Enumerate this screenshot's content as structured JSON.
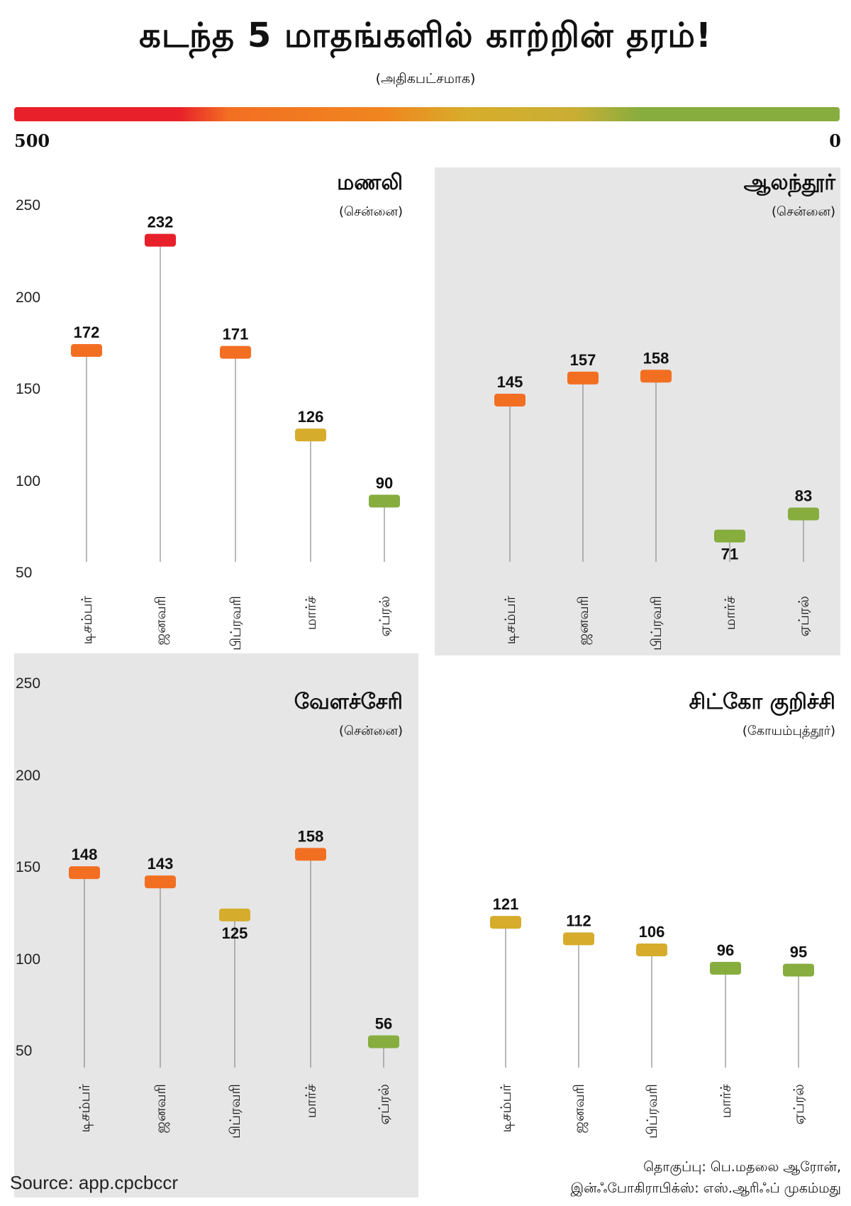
{
  "title": "கடந்த 5 மாதங்களில் காற்றின் தரம்!",
  "subtitle": "(அதிகபட்சமாக)",
  "scale": {
    "max_label": "500",
    "min_label": "0"
  },
  "colors": {
    "red": "#e8202a",
    "orange": "#f26f22",
    "yellow": "#d6ac2c",
    "green": "#86ad3e",
    "panel_gray": "#e6e6e7"
  },
  "yticks": [
    "250",
    "200",
    "150",
    "100",
    "50"
  ],
  "chart_data": [
    {
      "type": "dot",
      "title": "மணலி",
      "subtitle": "(சென்னை)",
      "categories": [
        "டிசம்பர்",
        "ஜனவரி",
        "பிப்ரவரி",
        "மார்ச்",
        "ஏப்ரல்"
      ],
      "values": [
        172,
        232,
        171,
        126,
        90
      ],
      "colors": [
        "orange",
        "red",
        "orange",
        "yellow",
        "green"
      ],
      "ylim": [
        50,
        250
      ]
    },
    {
      "type": "dot",
      "title": "ஆலந்தூர்",
      "subtitle": "(சென்னை)",
      "categories": [
        "டிசம்பர்",
        "ஜனவரி",
        "பிப்ரவரி",
        "மார்ச்",
        "ஏப்ரல்"
      ],
      "values": [
        145,
        157,
        158,
        71,
        83
      ],
      "colors": [
        "orange",
        "orange",
        "orange",
        "green",
        "green"
      ],
      "ylim": [
        50,
        250
      ]
    },
    {
      "type": "dot",
      "title": "வேளச்சேரி",
      "subtitle": "(சென்னை)",
      "categories": [
        "டிசம்பர்",
        "ஜனவரி",
        "பிப்ரவரி",
        "மார்ச்",
        "ஏப்ரல்"
      ],
      "values": [
        148,
        143,
        125,
        158,
        56
      ],
      "colors": [
        "orange",
        "orange",
        "yellow",
        "orange",
        "green"
      ],
      "ylim": [
        50,
        250
      ]
    },
    {
      "type": "dot",
      "title": "சிட்கோ குறிச்சி",
      "subtitle": "(கோயம்புத்தூர்)",
      "categories": [
        "டிசம்பர்",
        "ஜனவரி",
        "பிப்ரவரி",
        "மார்ச்",
        "ஏப்ரல்"
      ],
      "values": [
        121,
        112,
        106,
        96,
        95
      ],
      "colors": [
        "yellow",
        "yellow",
        "yellow",
        "green",
        "green"
      ],
      "ylim": [
        50,
        250
      ]
    }
  ],
  "source": "Source: app.cpcbccr",
  "credit": {
    "line1": "தொகுப்பு: பெ.மதலை ஆரோன்,",
    "line2": "இன்ஃபோகிராபிக்ஸ்: எஸ்.ஆரிஃப் முகம்மது"
  }
}
